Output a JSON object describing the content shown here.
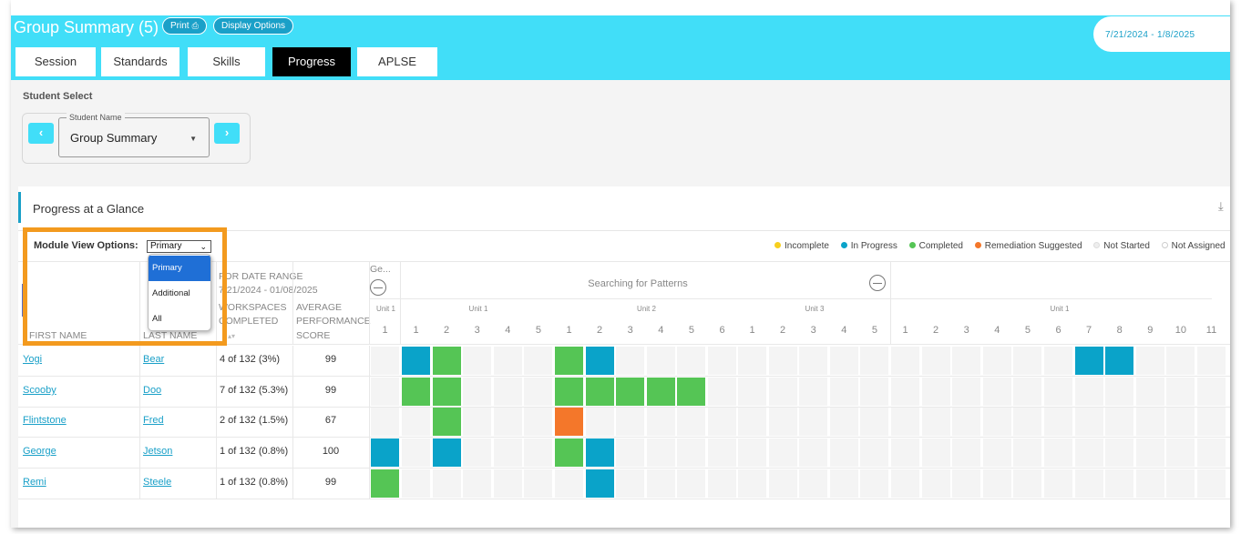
{
  "header": {
    "title": "Group Summary (5)",
    "print_label": "Print",
    "display_options_label": "Display Options",
    "date_range": "7/21/2024 - 1/8/2025"
  },
  "tabs": [
    "Session",
    "Standards",
    "Skills",
    "Progress",
    "APLSE"
  ],
  "active_tab": "Progress",
  "student_select": {
    "label": "Student Select",
    "field_label": "Student Name",
    "value": "Group Summary"
  },
  "progress": {
    "title": "Progress at a Glance",
    "module_view_label": "Module View Options:",
    "module_view_value": "Primary",
    "module_options": [
      "Primary",
      "Additional",
      "All"
    ],
    "legend": [
      {
        "label": "Incomplete",
        "color": "#f7cf1d"
      },
      {
        "label": "In Progress",
        "color": "#0aa3c9"
      },
      {
        "label": "Completed",
        "color": "#55c555"
      },
      {
        "label": "Remediation Suggested",
        "color": "#f4772a"
      },
      {
        "label": "Not Started",
        "color": "#eeeeee"
      },
      {
        "label": "Not Assigned",
        "color": "#ffffff"
      }
    ],
    "date_range_header": [
      "FOR DATE RANGE",
      "7/21/2024 - 01/08/2025"
    ],
    "columns": {
      "first_name": "FIRST NAME",
      "last_name": "LAST NAME",
      "workspaces": [
        "WORKSPACES",
        "COMPLETED"
      ],
      "avg_score": [
        "AVERAGE",
        "PERFORMANCE",
        "SCORE"
      ]
    },
    "modules": [
      {
        "name": "Ge...",
        "units": [
          {
            "name": "Unit 1",
            "lessons": [
              "1"
            ]
          }
        ]
      },
      {
        "name": "Searching for Patterns",
        "units": [
          {
            "name": "Unit 1",
            "lessons": [
              "1",
              "2",
              "3",
              "4",
              "5"
            ]
          },
          {
            "name": "Unit 2",
            "lessons": [
              "1",
              "2",
              "3",
              "4",
              "5",
              "6"
            ]
          },
          {
            "name": "Unit 3",
            "lessons": [
              "1",
              "2",
              "3",
              "4",
              "5"
            ]
          }
        ]
      },
      {
        "name": "",
        "units": [
          {
            "name": "Unit 1",
            "lessons": [
              "1",
              "2",
              "3",
              "4",
              "5",
              "6",
              "7",
              "8",
              "9",
              "10",
              "11"
            ]
          }
        ]
      }
    ],
    "students": [
      {
        "first": "Yogi",
        "last": "Bear",
        "workspaces": "4 of 132 (3%)",
        "score": "99",
        "cells": [
          "",
          "in-progress",
          "completed",
          "",
          "",
          "",
          "completed",
          "in-progress",
          "",
          "",
          "",
          "",
          "",
          "",
          "",
          "",
          "",
          "",
          "",
          "",
          "",
          "",
          "",
          "in-progress",
          "in-progress",
          "",
          "",
          ""
        ]
      },
      {
        "first": "Scooby",
        "last": "Doo",
        "workspaces": "7 of 132 (5.3%)",
        "score": "99",
        "cells": [
          "",
          "completed",
          "completed",
          "",
          "",
          "",
          "completed",
          "completed",
          "completed",
          "completed",
          "completed",
          "",
          "",
          "",
          "",
          "",
          "",
          "",
          "",
          "",
          "",
          "",
          "",
          "",
          "",
          "",
          "",
          ""
        ]
      },
      {
        "first": "Flintstone",
        "last": "Fred",
        "workspaces": "2 of 132 (1.5%)",
        "score": "67",
        "cells": [
          "",
          "",
          "completed",
          "",
          "",
          "",
          "remediation",
          "",
          "",
          "",
          "",
          "",
          "",
          "",
          "",
          "",
          "",
          "",
          "",
          "",
          "",
          "",
          "",
          "",
          "",
          "",
          "",
          ""
        ]
      },
      {
        "first": "George",
        "last": "Jetson",
        "workspaces": "1 of 132 (0.8%)",
        "score": "100",
        "cells": [
          "in-progress",
          "",
          "in-progress",
          "",
          "",
          "",
          "completed",
          "in-progress",
          "",
          "",
          "",
          "",
          "",
          "",
          "",
          "",
          "",
          "",
          "",
          "",
          "",
          "",
          "",
          "",
          "",
          "",
          "",
          ""
        ]
      },
      {
        "first": "Remi",
        "last": "Steele",
        "workspaces": "1 of 132 (0.8%)",
        "score": "99",
        "cells": [
          "completed",
          "",
          "",
          "",
          "",
          "",
          "",
          "in-progress",
          "",
          "",
          "",
          "",
          "",
          "",
          "",
          "",
          "",
          "",
          "",
          "",
          "",
          "",
          "",
          "",
          "",
          "",
          "",
          ""
        ]
      }
    ]
  }
}
